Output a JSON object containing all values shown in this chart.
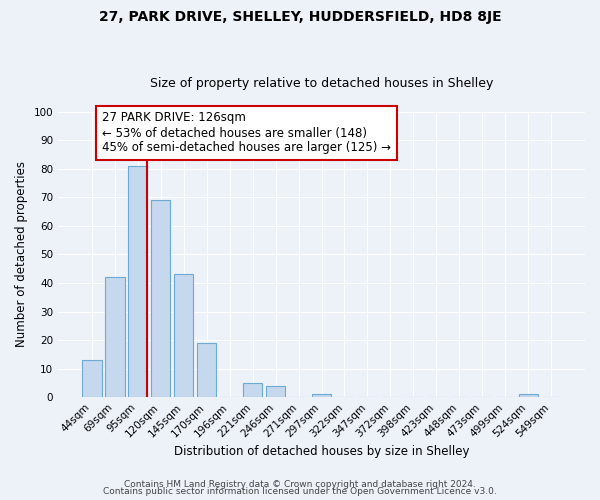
{
  "title": "27, PARK DRIVE, SHELLEY, HUDDERSFIELD, HD8 8JE",
  "subtitle": "Size of property relative to detached houses in Shelley",
  "xlabel": "Distribution of detached houses by size in Shelley",
  "ylabel": "Number of detached properties",
  "bar_labels": [
    "44sqm",
    "69sqm",
    "95sqm",
    "120sqm",
    "145sqm",
    "170sqm",
    "196sqm",
    "221sqm",
    "246sqm",
    "271sqm",
    "297sqm",
    "322sqm",
    "347sqm",
    "372sqm",
    "398sqm",
    "423sqm",
    "448sqm",
    "473sqm",
    "499sqm",
    "524sqm",
    "549sqm"
  ],
  "bar_values": [
    13,
    42,
    81,
    69,
    43,
    19,
    0,
    5,
    4,
    0,
    1,
    0,
    0,
    0,
    0,
    0,
    0,
    0,
    0,
    1,
    0
  ],
  "bar_color": "#c5d8ee",
  "bar_edge_color": "#6aaad4",
  "vline_color": "#cc0000",
  "annotation_text": "27 PARK DRIVE: 126sqm\n← 53% of detached houses are smaller (148)\n45% of semi-detached houses are larger (125) →",
  "annotation_box_color": "#ffffff",
  "annotation_box_edge": "#cc0000",
  "ylim": [
    0,
    100
  ],
  "yticks": [
    0,
    10,
    20,
    30,
    40,
    50,
    60,
    70,
    80,
    90,
    100
  ],
  "footer_line1": "Contains HM Land Registry data © Crown copyright and database right 2024.",
  "footer_line2": "Contains public sector information licensed under the Open Government Licence v3.0.",
  "bg_color": "#edf2f9",
  "title_fontsize": 10,
  "subtitle_fontsize": 9,
  "axis_label_fontsize": 8.5,
  "tick_fontsize": 7.5,
  "annotation_fontsize": 8.5,
  "footer_fontsize": 6.5
}
